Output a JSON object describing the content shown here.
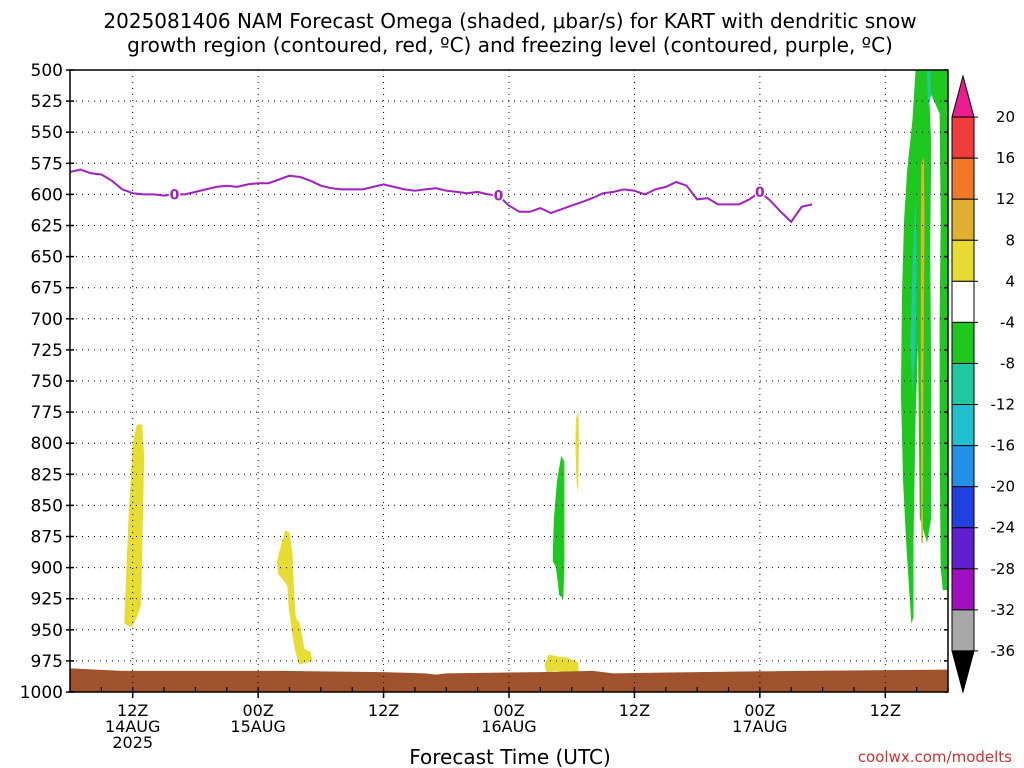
{
  "title_lines": [
    "2025081406 NAM Forecast Omega (shaded, μbar/s) for KART with dendritic snow",
    "growth region (contoured, red, ºC) and freezing level (contoured, purple, ºC)"
  ],
  "credit": "coolwx.com/modelts",
  "chart_data": {
    "type": "time-height",
    "title": "2025081406 NAM Forecast Omega (shaded, μbar/s) for KART with dendritic snow growth region (contoured, red, ºC) and freezing level (contoured, purple, ºC)",
    "xlabel": "Forecast Time (UTC)",
    "ylabel": "",
    "x_unit": "hours since 2025-08-14 06Z",
    "xlim": [
      0,
      84
    ],
    "y_unit": "hPa",
    "ylim": [
      1000,
      500
    ],
    "y_ticks": [
      500,
      525,
      550,
      575,
      600,
      625,
      650,
      675,
      700,
      725,
      750,
      775,
      800,
      825,
      850,
      875,
      900,
      925,
      950,
      975,
      1000
    ],
    "x_ticks": [
      {
        "x": 6,
        "lines": [
          "12Z",
          "14AUG",
          "2025"
        ]
      },
      {
        "x": 18,
        "lines": [
          "00Z",
          "15AUG"
        ]
      },
      {
        "x": 30,
        "lines": [
          "12Z"
        ]
      },
      {
        "x": 42,
        "lines": [
          "00Z",
          "16AUG"
        ]
      },
      {
        "x": 54,
        "lines": [
          "12Z"
        ]
      },
      {
        "x": 66,
        "lines": [
          "00Z",
          "17AUG"
        ]
      },
      {
        "x": 78,
        "lines": [
          "12Z"
        ]
      }
    ],
    "grid": true,
    "freezing_level": {
      "label": "0",
      "color": "#a020c0",
      "label_x": [
        10,
        41,
        66
      ],
      "points": [
        [
          0,
          582
        ],
        [
          1,
          580
        ],
        [
          2,
          583
        ],
        [
          3,
          584
        ],
        [
          4,
          589
        ],
        [
          5,
          596
        ],
        [
          6,
          599
        ],
        [
          7,
          600
        ],
        [
          8,
          600
        ],
        [
          9,
          601
        ],
        [
          10,
          600
        ],
        [
          11,
          600
        ],
        [
          12,
          598
        ],
        [
          13,
          596
        ],
        [
          14,
          594
        ],
        [
          15,
          593
        ],
        [
          16,
          594
        ],
        [
          17,
          592
        ],
        [
          18,
          591
        ],
        [
          19,
          591
        ],
        [
          20,
          588
        ],
        [
          21,
          585
        ],
        [
          22,
          586
        ],
        [
          23,
          589
        ],
        [
          24,
          593
        ],
        [
          25,
          595
        ],
        [
          26,
          596
        ],
        [
          27,
          596
        ],
        [
          28,
          596
        ],
        [
          29,
          594
        ],
        [
          30,
          592
        ],
        [
          31,
          594
        ],
        [
          32,
          596
        ],
        [
          33,
          597
        ],
        [
          34,
          596
        ],
        [
          35,
          595
        ],
        [
          36,
          597
        ],
        [
          37,
          598
        ],
        [
          38,
          599
        ],
        [
          39,
          598
        ],
        [
          40,
          600
        ],
        [
          41,
          601
        ],
        [
          42,
          609
        ],
        [
          43,
          614
        ],
        [
          44,
          614
        ],
        [
          45,
          611
        ],
        [
          46,
          615
        ],
        [
          47,
          612
        ],
        [
          48,
          609
        ],
        [
          49,
          606
        ],
        [
          50,
          603
        ],
        [
          51,
          599
        ],
        [
          52,
          598
        ],
        [
          53,
          596
        ],
        [
          54,
          597
        ],
        [
          55,
          600
        ],
        [
          56,
          596
        ],
        [
          57,
          594
        ],
        [
          58,
          590
        ],
        [
          59,
          593
        ],
        [
          60,
          604
        ],
        [
          61,
          603
        ],
        [
          62,
          608
        ],
        [
          63,
          608
        ],
        [
          64,
          608
        ],
        [
          65,
          604
        ],
        [
          66,
          598
        ],
        [
          67,
          605
        ],
        [
          68,
          614
        ],
        [
          69,
          622
        ],
        [
          70,
          610
        ],
        [
          71,
          608
        ]
      ],
      "note": "pressure (hPa) vs forecast hour"
    },
    "omega_regions": [
      {
        "value_range": [
          4,
          8
        ],
        "color": "#e6dc32",
        "desc": "upward-positive band near 12Z 14AUG",
        "x_center": 6.5,
        "p_range": [
          785,
          945
        ]
      },
      {
        "value_range": [
          4,
          8
        ],
        "color": "#e6dc32",
        "desc": "band after 00Z 15AUG",
        "x_center": 21,
        "p_range": [
          870,
          975
        ]
      },
      {
        "value_range": [
          4,
          8
        ],
        "color": "#e6dc32",
        "desc": "thin streak near 16AUG",
        "x_center": 48.5,
        "p_range": [
          780,
          840
        ]
      },
      {
        "value_range": [
          4,
          8
        ],
        "color": "#e6dc32",
        "desc": "low patch near 16AUG",
        "x_center": 46.5,
        "p_range": [
          970,
          985
        ]
      },
      {
        "value_range": [
          -8,
          -4
        ],
        "color": "#1ec81e",
        "desc": "green streak near 16AUG",
        "x_center": 46.5,
        "p_range": [
          810,
          925
        ]
      },
      {
        "value_range": [
          -8,
          -4
        ],
        "color": "#1ec81e",
        "desc": "strong column near end",
        "x_center": 80.5,
        "p_range": [
          500,
          945
        ]
      },
      {
        "value_range": [
          -12,
          -8
        ],
        "color": "#20c8a0",
        "desc": "embedded core",
        "x_center": 80.5,
        "p_range": [
          500,
          760
        ]
      },
      {
        "value_range": [
          8,
          12
        ],
        "color": "#e0b030",
        "desc": "narrow upward core",
        "x_center": 81.5,
        "p_range": [
          570,
          880
        ]
      }
    ],
    "terrain": {
      "color": "#a0522d",
      "surface_hPa": 983
    },
    "colorbar": {
      "ticks": [
        20,
        16,
        12,
        8,
        4,
        -4,
        -8,
        -12,
        -16,
        -20,
        -24,
        -28,
        -32,
        -36
      ],
      "bands": [
        {
          "from": 20,
          "to": 24,
          "color": "#e81e8c"
        },
        {
          "from": 16,
          "to": 20,
          "color": "#f03c3c"
        },
        {
          "from": 12,
          "to": 16,
          "color": "#f07828"
        },
        {
          "from": 8,
          "to": 12,
          "color": "#e0b030"
        },
        {
          "from": 4,
          "to": 8,
          "color": "#e6dc32"
        },
        {
          "from": -4,
          "to": 4,
          "color": "#ffffff"
        },
        {
          "from": -8,
          "to": -4,
          "color": "#1ec81e"
        },
        {
          "from": -12,
          "to": -8,
          "color": "#20c8a0"
        },
        {
          "from": -16,
          "to": -12,
          "color": "#20c0d0"
        },
        {
          "from": -20,
          "to": -16,
          "color": "#2090e8"
        },
        {
          "from": -24,
          "to": -20,
          "color": "#2040e0"
        },
        {
          "from": -28,
          "to": -24,
          "color": "#6020d0"
        },
        {
          "from": -32,
          "to": -28,
          "color": "#a010c0"
        },
        {
          "from": -36,
          "to": -32,
          "color": "#a8a8a8"
        },
        {
          "from": -40,
          "to": -36,
          "color": "#000000"
        }
      ]
    }
  }
}
